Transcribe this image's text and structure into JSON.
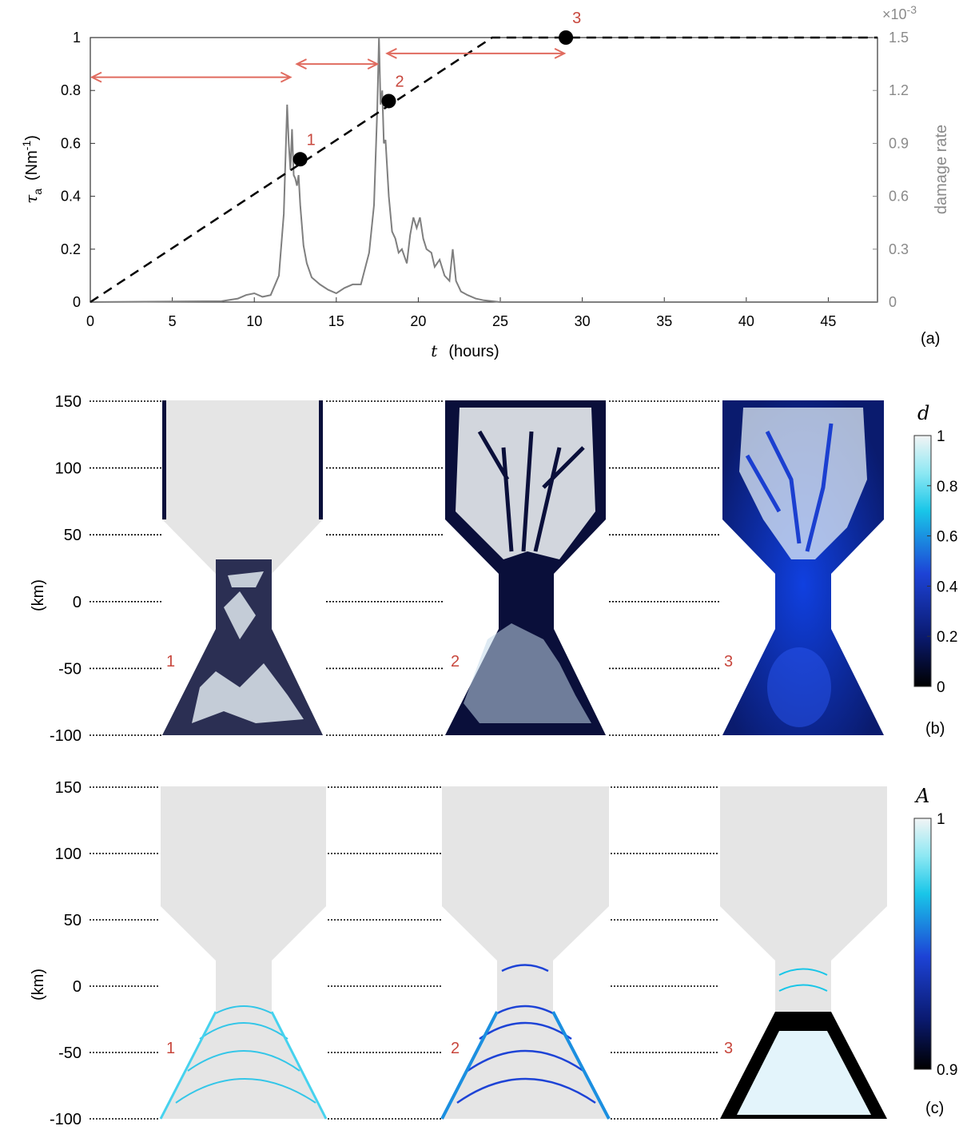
{
  "chart_data": [
    {
      "panel_label": "(a)",
      "type": "line",
      "xlabel_symbol": "t",
      "xlabel_unit": "(hours)",
      "ylabel_symbol": "τ",
      "ylabel_sub": "a",
      "ylabel_unit": "(Nm",
      "ylabel_unit_exp": "-1",
      "ylabel_unit_close": ")",
      "y2label": "damage rate",
      "y2_multiplier": "×10",
      "y2_multiplier_exp": "-3",
      "xlim": [
        0,
        48
      ],
      "ylim": [
        0,
        1
      ],
      "y2lim": [
        0,
        1.5
      ],
      "xticks": [
        "0",
        "5",
        "10",
        "15",
        "20",
        "25",
        "30",
        "35",
        "40",
        "45"
      ],
      "yticks": [
        "0",
        "0.2",
        "0.4",
        "0.6",
        "0.8",
        "1"
      ],
      "y2ticks": [
        "0",
        "0.3",
        "0.6",
        "0.9",
        "1.2",
        "1.5"
      ],
      "series": [
        {
          "style": "dashed",
          "color": "#000000",
          "x": [
            0,
            24.5,
            48
          ],
          "y": [
            0,
            1,
            1
          ]
        },
        {
          "axis": "right",
          "color": "#7f7f7f",
          "x": [
            0,
            8,
            9,
            9.5,
            10,
            10.5,
            11,
            11.5,
            11.8,
            12.0,
            12.1,
            12.2,
            12.3,
            12.4,
            12.5,
            12.6,
            12.7,
            12.8,
            13.0,
            13.2,
            13.5,
            14,
            14.5,
            15,
            15.5,
            16,
            16.5,
            17.0,
            17.3,
            17.5,
            17.6,
            17.7,
            17.8,
            17.9,
            18.0,
            18.2,
            18.4,
            18.6,
            18.8,
            19.0,
            19.3,
            19.5,
            19.7,
            19.9,
            20.1,
            20.3,
            20.5,
            20.8,
            21.0,
            21.3,
            21.6,
            21.9,
            22.1,
            22.3,
            22.6,
            23.0,
            23.5,
            24.0,
            24.5,
            25,
            48
          ],
          "y": [
            0,
            0.005,
            0.02,
            0.04,
            0.05,
            0.03,
            0.04,
            0.15,
            0.5,
            1.12,
            0.9,
            0.75,
            0.98,
            0.72,
            0.7,
            0.66,
            0.72,
            0.55,
            0.32,
            0.22,
            0.14,
            0.1,
            0.07,
            0.05,
            0.08,
            0.1,
            0.1,
            0.28,
            0.55,
            1.1,
            1.5,
            1.12,
            1.2,
            0.9,
            0.92,
            0.6,
            0.4,
            0.36,
            0.28,
            0.3,
            0.22,
            0.38,
            0.48,
            0.42,
            0.48,
            0.36,
            0.3,
            0.28,
            0.2,
            0.24,
            0.15,
            0.12,
            0.3,
            0.12,
            0.06,
            0.04,
            0.02,
            0.01,
            0.005,
            0,
            0
          ]
        }
      ],
      "points": [
        {
          "label": "1",
          "x": 12.8,
          "y": 0.54
        },
        {
          "label": "2",
          "x": 18.2,
          "y": 0.76
        },
        {
          "label": "3",
          "x": 29,
          "y": 1
        }
      ],
      "intervals": [
        [
          0,
          12.3
        ],
        [
          12.5,
          17.6
        ],
        [
          18.0,
          29.0
        ]
      ],
      "interval_y": 0.85,
      "interval_color": "#e06b5f"
    },
    {
      "panel_label": "(b)",
      "type": "heatmap",
      "colorbar_label": "d",
      "ylabel": "(km)",
      "yticks": [
        "150",
        "100",
        "50",
        "0",
        "-50",
        "-100"
      ],
      "colorbar_ticks": [
        "1",
        "0.8",
        "0.6",
        "0.4",
        "0.2",
        "0"
      ],
      "clim": [
        0,
        1
      ],
      "snapshots": [
        "1",
        "2",
        "3"
      ]
    },
    {
      "panel_label": "(c)",
      "type": "heatmap",
      "colorbar_label": "A",
      "ylabel": "(km)",
      "yticks": [
        "150",
        "100",
        "50",
        "0",
        "-50",
        "-100"
      ],
      "colorbar_ticks": [
        "1",
        "0.9"
      ],
      "clim": [
        0.9,
        1
      ],
      "snapshots": [
        "1",
        "2",
        "3"
      ]
    }
  ]
}
